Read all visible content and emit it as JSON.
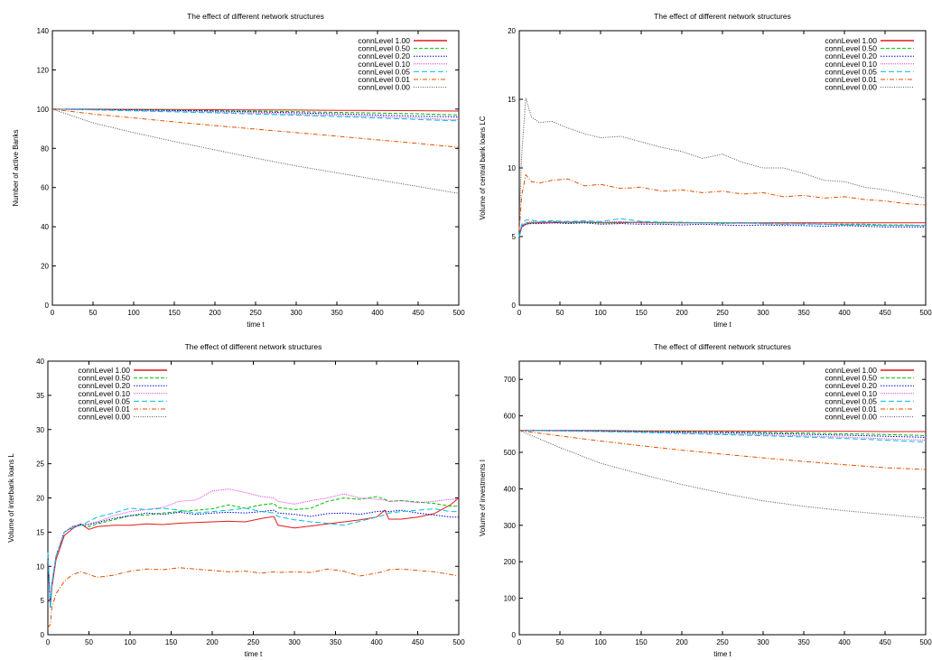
{
  "series_styles": [
    {
      "name": "connLevel 1.00",
      "color": "#e31a1c",
      "dash": "",
      "width": 1.6
    },
    {
      "name": "connLevel 0.50",
      "color": "#00c000",
      "dash": "4,2",
      "width": 1
    },
    {
      "name": "connLevel 0.20",
      "color": "#0000c8",
      "dash": "1.5,1.5",
      "width": 1
    },
    {
      "name": "connLevel 0.10",
      "color": "#e040e0",
      "dash": "1,1",
      "width": 1
    },
    {
      "name": "connLevel 0.05",
      "color": "#00c0e0",
      "dash": "6,3",
      "width": 1
    },
    {
      "name": "connLevel 0.01",
      "color": "#e05000",
      "dash": "5,2,1,2",
      "width": 1
    },
    {
      "name": "connLevel 0.00",
      "color": "#505050",
      "dash": "1,1.5",
      "width": 1
    }
  ],
  "chart_data": [
    {
      "type": "line",
      "title": "The effect of different network structures",
      "xlabel": "time t",
      "ylabel": "Number of active Banks",
      "xlim": [
        0,
        500
      ],
      "ylim": [
        0,
        140
      ],
      "xticks": [
        0,
        50,
        100,
        150,
        200,
        250,
        300,
        350,
        400,
        450,
        500
      ],
      "yticks": [
        0,
        20,
        40,
        60,
        80,
        100,
        120,
        140
      ],
      "legend": "top-right",
      "x": [
        0,
        50,
        100,
        150,
        200,
        250,
        300,
        350,
        400,
        450,
        500
      ],
      "series": [
        {
          "name": "connLevel 1.00",
          "values": [
            100,
            100,
            99.9,
            99.8,
            99.7,
            99.6,
            99.5,
            99.4,
            99.3,
            99.2,
            99
          ]
        },
        {
          "name": "connLevel 0.50",
          "values": [
            100,
            99.9,
            99.7,
            99.5,
            99.2,
            99,
            98.7,
            98.3,
            98,
            97.6,
            97
          ]
        },
        {
          "name": "connLevel 0.20",
          "values": [
            100,
            99.8,
            99.6,
            99.3,
            99,
            98.6,
            98.1,
            97.6,
            97,
            96.4,
            96
          ]
        },
        {
          "name": "connLevel 0.10",
          "values": [
            100,
            99.7,
            99.3,
            98.9,
            98.5,
            98,
            97.4,
            96.8,
            96.1,
            95.4,
            94.5
          ]
        },
        {
          "name": "connLevel 0.05",
          "values": [
            100,
            99.6,
            99.1,
            98.6,
            98.1,
            97.5,
            96.9,
            96.2,
            95.5,
            94.7,
            94
          ]
        },
        {
          "name": "connLevel 0.01",
          "values": [
            100,
            97.5,
            95.5,
            93.5,
            91.6,
            89.8,
            88,
            86.2,
            84.3,
            82.5,
            80.5
          ]
        },
        {
          "name": "connLevel 0.00",
          "values": [
            100,
            93,
            88,
            83.5,
            79.2,
            75,
            71,
            67.5,
            64,
            60.5,
            57
          ]
        }
      ]
    },
    {
      "type": "line",
      "title": "The effect of different network structures",
      "xlabel": "time t",
      "ylabel": "Volume of central bank loans LC",
      "xlim": [
        0,
        500
      ],
      "ylim": [
        0,
        20
      ],
      "xticks": [
        0,
        50,
        100,
        150,
        200,
        250,
        300,
        350,
        400,
        450,
        500
      ],
      "yticks": [
        0,
        5,
        10,
        15,
        20
      ],
      "legend": "top-right",
      "x": [
        0,
        3,
        8,
        15,
        25,
        40,
        60,
        80,
        100,
        125,
        150,
        175,
        200,
        225,
        250,
        275,
        300,
        325,
        350,
        375,
        400,
        425,
        450,
        475,
        500
      ],
      "series": [
        {
          "name": "connLevel 1.00",
          "values": [
            5,
            5.7,
            5.9,
            6,
            6,
            6,
            6.05,
            6.05,
            6,
            6,
            6.05,
            6,
            6,
            6,
            6,
            6,
            6,
            6,
            6,
            6,
            6,
            6,
            6,
            6,
            6
          ]
        },
        {
          "name": "connLevel 0.50",
          "values": [
            5,
            5.8,
            6,
            6,
            6.05,
            6.1,
            6,
            6.05,
            6,
            6.05,
            6,
            6,
            6,
            6,
            5.95,
            6,
            5.95,
            5.9,
            5.95,
            5.9,
            5.9,
            5.9,
            5.85,
            5.85,
            5.8
          ]
        },
        {
          "name": "connLevel 0.20",
          "values": [
            5,
            5.7,
            5.9,
            5.95,
            5.95,
            6,
            5.95,
            6,
            5.9,
            5.95,
            5.9,
            5.9,
            5.85,
            5.9,
            5.85,
            5.8,
            5.85,
            5.8,
            5.8,
            5.75,
            5.8,
            5.75,
            5.7,
            5.7,
            5.7
          ]
        },
        {
          "name": "connLevel 0.10",
          "values": [
            5,
            5.8,
            6,
            6.1,
            6.05,
            6.1,
            6.05,
            6.1,
            6.05,
            6.1,
            6,
            6.05,
            6,
            6,
            6,
            5.95,
            6,
            5.9,
            5.95,
            5.9,
            5.85,
            5.85,
            5.8,
            5.8,
            5.8
          ]
        },
        {
          "name": "connLevel 0.05",
          "values": [
            5,
            5.9,
            6.2,
            6.2,
            6.1,
            6.15,
            6.1,
            6.15,
            6.1,
            6.3,
            6.1,
            6.05,
            6.05,
            6,
            6,
            6,
            5.95,
            5.95,
            5.9,
            5.9,
            5.85,
            5.85,
            5.8,
            5.8,
            5.8
          ]
        },
        {
          "name": "connLevel 0.01",
          "values": [
            5.5,
            8,
            9.5,
            9,
            8.9,
            9.1,
            9.2,
            8.7,
            8.8,
            8.5,
            8.6,
            8.3,
            8.4,
            8.2,
            8.3,
            8.1,
            8.2,
            7.9,
            8,
            7.8,
            7.9,
            7.7,
            7.6,
            7.4,
            7.3
          ]
        },
        {
          "name": "connLevel 0.00",
          "values": [
            6,
            11,
            15.1,
            13.7,
            13.3,
            13.4,
            12.9,
            12.5,
            12.2,
            12.3,
            11.9,
            11.5,
            11.2,
            10.7,
            11,
            10.4,
            10,
            10,
            9.6,
            9.1,
            9,
            8.6,
            8.4,
            8.1,
            7.8
          ]
        }
      ]
    },
    {
      "type": "line",
      "title": "The effect of different network structures",
      "xlabel": "time t",
      "ylabel": "Volume of interbank loans L",
      "xlim": [
        0,
        500
      ],
      "ylim": [
        0,
        40
      ],
      "xticks": [
        0,
        50,
        100,
        150,
        200,
        250,
        300,
        350,
        400,
        450,
        500
      ],
      "yticks": [
        0,
        5,
        10,
        15,
        20,
        25,
        30,
        35,
        40
      ],
      "legend": "top-left",
      "x": [
        0,
        3,
        5,
        10,
        20,
        30,
        40,
        50,
        60,
        80,
        100,
        120,
        140,
        160,
        180,
        200,
        220,
        240,
        260,
        275,
        280,
        300,
        320,
        340,
        360,
        380,
        400,
        410,
        415,
        430,
        450,
        470,
        490,
        500
      ],
      "series": [
        {
          "name": "connLevel 1.00",
          "values": [
            12,
            4,
            7,
            11,
            14.5,
            15.5,
            16.2,
            15.4,
            15.8,
            16,
            16,
            16.2,
            16.1,
            16.3,
            16.4,
            16.5,
            16.6,
            16.5,
            17,
            17.3,
            16,
            15.6,
            15.9,
            16.2,
            16.5,
            16.8,
            17.2,
            18.2,
            16.9,
            16.9,
            17.2,
            17.7,
            19,
            20
          ]
        },
        {
          "name": "connLevel 0.50",
          "values": [
            12,
            4,
            7.5,
            11.5,
            15,
            15.8,
            16,
            15.8,
            16.2,
            16.8,
            17.4,
            17.5,
            17.8,
            18,
            18.2,
            18.4,
            19,
            18.5,
            19,
            19.2,
            18.6,
            18.3,
            18.5,
            19.5,
            20,
            19.8,
            20.2,
            19.8,
            19.5,
            19.6,
            19.4,
            19.2,
            18.8,
            18.8
          ]
        },
        {
          "name": "connLevel 0.20",
          "values": [
            12,
            4,
            7.5,
            11.5,
            15,
            15.8,
            16.1,
            16.1,
            16.4,
            17,
            17.4,
            17.8,
            17.6,
            17.9,
            17.6,
            17.8,
            17.9,
            17.8,
            18,
            18.2,
            17.8,
            17.6,
            17.3,
            17.7,
            17.8,
            17.6,
            18,
            18.1,
            18,
            18.2,
            17.8,
            17.5,
            17.2,
            17.2
          ]
        },
        {
          "name": "connLevel 0.10",
          "values": [
            12,
            4,
            7.5,
            11.5,
            15,
            15.8,
            16,
            16.2,
            16.5,
            17.4,
            18,
            18.3,
            18.6,
            19.5,
            19.7,
            21,
            21.3,
            20.8,
            20.2,
            20,
            19.5,
            19.1,
            19.6,
            20,
            20.6,
            20,
            19.8,
            19.7,
            19.5,
            19.6,
            19.3,
            19.5,
            19.8,
            19.8
          ]
        },
        {
          "name": "connLevel 0.05",
          "values": [
            12,
            4,
            7.5,
            11.5,
            15,
            15.6,
            16,
            16.6,
            17.2,
            17.8,
            18.5,
            18.3,
            18.5,
            18.2,
            17.8,
            18,
            18.2,
            18.5,
            18,
            17.8,
            17.3,
            16.8,
            16.5,
            16.3,
            16,
            16.6,
            17.2,
            17.5,
            17.8,
            18,
            18.2,
            18.4,
            18,
            18
          ]
        },
        {
          "name": "connLevel 0.01",
          "values": [
            1,
            1.5,
            4,
            6,
            7.8,
            8.8,
            9.2,
            8.8,
            8.4,
            8.7,
            9.3,
            9.6,
            9.5,
            9.8,
            9.6,
            9.4,
            9.2,
            9.3,
            9,
            9.2,
            9.1,
            9.2,
            9.1,
            9.6,
            9.3,
            8.6,
            9,
            9.3,
            9.5,
            9.6,
            9.4,
            9.2,
            8.8,
            8.6
          ]
        }
      ]
    },
    {
      "type": "line",
      "title": "The effect of different network structures",
      "xlabel": "time t",
      "ylabel": "Volume of investments I",
      "xlim": [
        0,
        500
      ],
      "ylim": [
        0,
        750
      ],
      "xticks": [
        0,
        50,
        100,
        150,
        200,
        250,
        300,
        350,
        400,
        450,
        500
      ],
      "yticks": [
        0,
        100,
        200,
        300,
        400,
        500,
        600,
        700
      ],
      "legend": "top-right",
      "x": [
        0,
        50,
        100,
        150,
        200,
        250,
        300,
        350,
        400,
        450,
        500
      ],
      "series": [
        {
          "name": "connLevel 1.00",
          "values": [
            560,
            560,
            560,
            559,
            559,
            559,
            558,
            558,
            558,
            557,
            557
          ]
        },
        {
          "name": "connLevel 0.50",
          "values": [
            560,
            559.5,
            559,
            558,
            557,
            556,
            554.5,
            553,
            551,
            549,
            546
          ]
        },
        {
          "name": "connLevel 0.20",
          "values": [
            560,
            559.5,
            558.5,
            557,
            555.5,
            554,
            552,
            549.5,
            547,
            544,
            541
          ]
        },
        {
          "name": "connLevel 0.10",
          "values": [
            560,
            559,
            557.5,
            555.5,
            553,
            550.5,
            548,
            545,
            541.5,
            537.5,
            533
          ]
        },
        {
          "name": "connLevel 0.05",
          "values": [
            560,
            558.5,
            557,
            554.5,
            551.5,
            548.5,
            545.5,
            542,
            538,
            533.5,
            528
          ]
        },
        {
          "name": "connLevel 0.01",
          "values": [
            560,
            545,
            531,
            518,
            506,
            495,
            485,
            475,
            466,
            458,
            453
          ]
        },
        {
          "name": "connLevel 0.00",
          "values": [
            560,
            513,
            470,
            440,
            412,
            388,
            367,
            352,
            340,
            330,
            320
          ]
        }
      ]
    }
  ]
}
